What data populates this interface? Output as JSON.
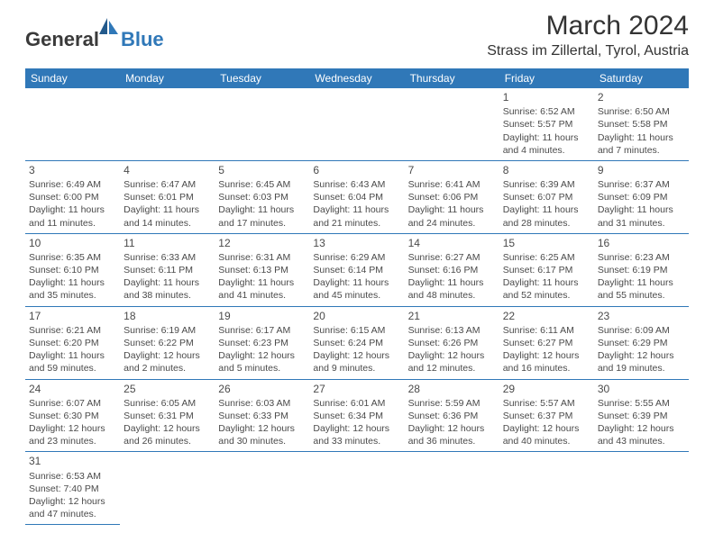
{
  "logo": {
    "general": "General",
    "blue": "Blue"
  },
  "header": {
    "title": "March 2024",
    "location": "Strass im Zillertal, Tyrol, Austria"
  },
  "daynames": [
    "Sunday",
    "Monday",
    "Tuesday",
    "Wednesday",
    "Thursday",
    "Friday",
    "Saturday"
  ],
  "colors": {
    "header_bg": "#3078b8",
    "header_text": "#ffffff",
    "cell_border": "#3078b8",
    "text": "#4a4a4a",
    "logo_blue": "#3078b8"
  },
  "font": {
    "day_header_pt": 12,
    "cell_pt": 10.5,
    "title_pt": 30,
    "location_pt": 16
  },
  "weeks": [
    [
      null,
      null,
      null,
      null,
      null,
      {
        "n": "1",
        "sr": "Sunrise: 6:52 AM",
        "ss": "Sunset: 5:57 PM",
        "d1": "Daylight: 11 hours",
        "d2": "and 4 minutes."
      },
      {
        "n": "2",
        "sr": "Sunrise: 6:50 AM",
        "ss": "Sunset: 5:58 PM",
        "d1": "Daylight: 11 hours",
        "d2": "and 7 minutes."
      }
    ],
    [
      {
        "n": "3",
        "sr": "Sunrise: 6:49 AM",
        "ss": "Sunset: 6:00 PM",
        "d1": "Daylight: 11 hours",
        "d2": "and 11 minutes."
      },
      {
        "n": "4",
        "sr": "Sunrise: 6:47 AM",
        "ss": "Sunset: 6:01 PM",
        "d1": "Daylight: 11 hours",
        "d2": "and 14 minutes."
      },
      {
        "n": "5",
        "sr": "Sunrise: 6:45 AM",
        "ss": "Sunset: 6:03 PM",
        "d1": "Daylight: 11 hours",
        "d2": "and 17 minutes."
      },
      {
        "n": "6",
        "sr": "Sunrise: 6:43 AM",
        "ss": "Sunset: 6:04 PM",
        "d1": "Daylight: 11 hours",
        "d2": "and 21 minutes."
      },
      {
        "n": "7",
        "sr": "Sunrise: 6:41 AM",
        "ss": "Sunset: 6:06 PM",
        "d1": "Daylight: 11 hours",
        "d2": "and 24 minutes."
      },
      {
        "n": "8",
        "sr": "Sunrise: 6:39 AM",
        "ss": "Sunset: 6:07 PM",
        "d1": "Daylight: 11 hours",
        "d2": "and 28 minutes."
      },
      {
        "n": "9",
        "sr": "Sunrise: 6:37 AM",
        "ss": "Sunset: 6:09 PM",
        "d1": "Daylight: 11 hours",
        "d2": "and 31 minutes."
      }
    ],
    [
      {
        "n": "10",
        "sr": "Sunrise: 6:35 AM",
        "ss": "Sunset: 6:10 PM",
        "d1": "Daylight: 11 hours",
        "d2": "and 35 minutes."
      },
      {
        "n": "11",
        "sr": "Sunrise: 6:33 AM",
        "ss": "Sunset: 6:11 PM",
        "d1": "Daylight: 11 hours",
        "d2": "and 38 minutes."
      },
      {
        "n": "12",
        "sr": "Sunrise: 6:31 AM",
        "ss": "Sunset: 6:13 PM",
        "d1": "Daylight: 11 hours",
        "d2": "and 41 minutes."
      },
      {
        "n": "13",
        "sr": "Sunrise: 6:29 AM",
        "ss": "Sunset: 6:14 PM",
        "d1": "Daylight: 11 hours",
        "d2": "and 45 minutes."
      },
      {
        "n": "14",
        "sr": "Sunrise: 6:27 AM",
        "ss": "Sunset: 6:16 PM",
        "d1": "Daylight: 11 hours",
        "d2": "and 48 minutes."
      },
      {
        "n": "15",
        "sr": "Sunrise: 6:25 AM",
        "ss": "Sunset: 6:17 PM",
        "d1": "Daylight: 11 hours",
        "d2": "and 52 minutes."
      },
      {
        "n": "16",
        "sr": "Sunrise: 6:23 AM",
        "ss": "Sunset: 6:19 PM",
        "d1": "Daylight: 11 hours",
        "d2": "and 55 minutes."
      }
    ],
    [
      {
        "n": "17",
        "sr": "Sunrise: 6:21 AM",
        "ss": "Sunset: 6:20 PM",
        "d1": "Daylight: 11 hours",
        "d2": "and 59 minutes."
      },
      {
        "n": "18",
        "sr": "Sunrise: 6:19 AM",
        "ss": "Sunset: 6:22 PM",
        "d1": "Daylight: 12 hours",
        "d2": "and 2 minutes."
      },
      {
        "n": "19",
        "sr": "Sunrise: 6:17 AM",
        "ss": "Sunset: 6:23 PM",
        "d1": "Daylight: 12 hours",
        "d2": "and 5 minutes."
      },
      {
        "n": "20",
        "sr": "Sunrise: 6:15 AM",
        "ss": "Sunset: 6:24 PM",
        "d1": "Daylight: 12 hours",
        "d2": "and 9 minutes."
      },
      {
        "n": "21",
        "sr": "Sunrise: 6:13 AM",
        "ss": "Sunset: 6:26 PM",
        "d1": "Daylight: 12 hours",
        "d2": "and 12 minutes."
      },
      {
        "n": "22",
        "sr": "Sunrise: 6:11 AM",
        "ss": "Sunset: 6:27 PM",
        "d1": "Daylight: 12 hours",
        "d2": "and 16 minutes."
      },
      {
        "n": "23",
        "sr": "Sunrise: 6:09 AM",
        "ss": "Sunset: 6:29 PM",
        "d1": "Daylight: 12 hours",
        "d2": "and 19 minutes."
      }
    ],
    [
      {
        "n": "24",
        "sr": "Sunrise: 6:07 AM",
        "ss": "Sunset: 6:30 PM",
        "d1": "Daylight: 12 hours",
        "d2": "and 23 minutes."
      },
      {
        "n": "25",
        "sr": "Sunrise: 6:05 AM",
        "ss": "Sunset: 6:31 PM",
        "d1": "Daylight: 12 hours",
        "d2": "and 26 minutes."
      },
      {
        "n": "26",
        "sr": "Sunrise: 6:03 AM",
        "ss": "Sunset: 6:33 PM",
        "d1": "Daylight: 12 hours",
        "d2": "and 30 minutes."
      },
      {
        "n": "27",
        "sr": "Sunrise: 6:01 AM",
        "ss": "Sunset: 6:34 PM",
        "d1": "Daylight: 12 hours",
        "d2": "and 33 minutes."
      },
      {
        "n": "28",
        "sr": "Sunrise: 5:59 AM",
        "ss": "Sunset: 6:36 PM",
        "d1": "Daylight: 12 hours",
        "d2": "and 36 minutes."
      },
      {
        "n": "29",
        "sr": "Sunrise: 5:57 AM",
        "ss": "Sunset: 6:37 PM",
        "d1": "Daylight: 12 hours",
        "d2": "and 40 minutes."
      },
      {
        "n": "30",
        "sr": "Sunrise: 5:55 AM",
        "ss": "Sunset: 6:39 PM",
        "d1": "Daylight: 12 hours",
        "d2": "and 43 minutes."
      }
    ],
    [
      {
        "n": "31",
        "sr": "Sunrise: 6:53 AM",
        "ss": "Sunset: 7:40 PM",
        "d1": "Daylight: 12 hours",
        "d2": "and 47 minutes."
      },
      null,
      null,
      null,
      null,
      null,
      null
    ]
  ]
}
